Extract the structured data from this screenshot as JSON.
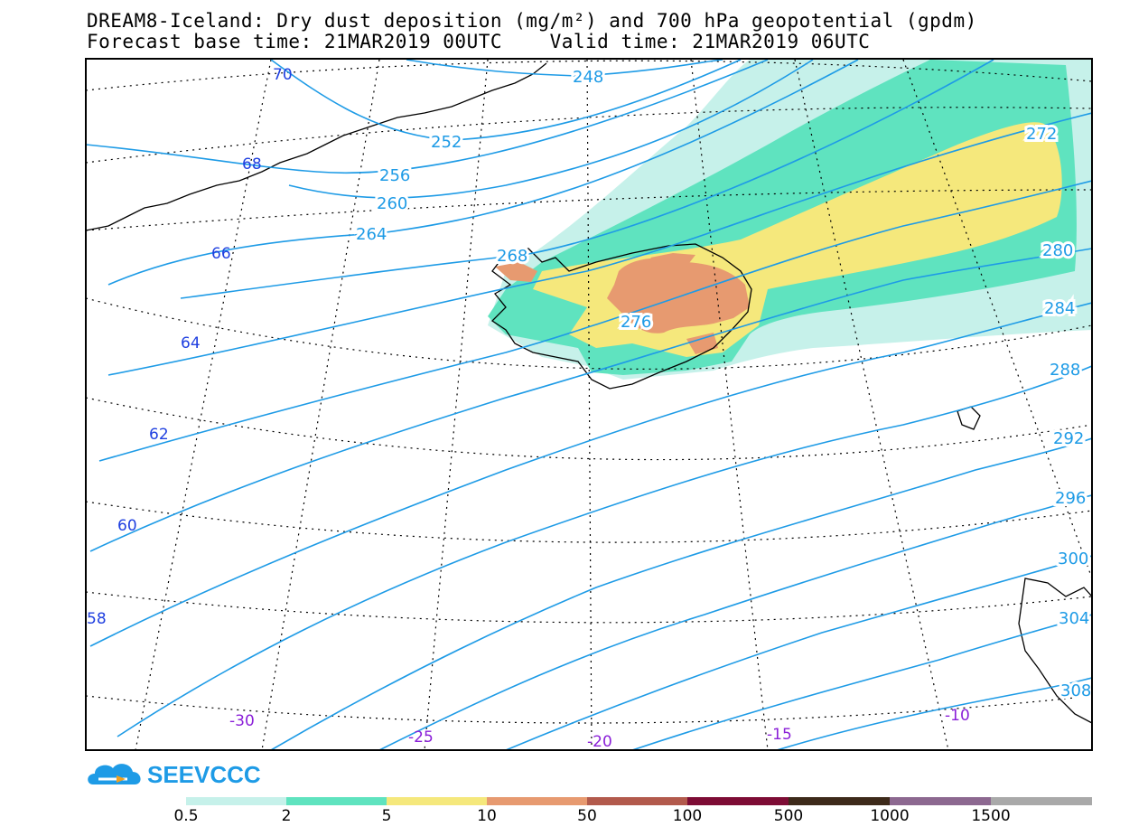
{
  "header": {
    "title_line1": "DREAM8-Iceland: Dry dust deposition (mg/m²) and 700 hPa geopotential (gpdm)",
    "title_line2": "Forecast base time: 21MAR2019 00UTC    Valid time: 21MAR2019 06UTC"
  },
  "map": {
    "geopotential_labels": [
      "248",
      "252",
      "256",
      "260",
      "264",
      "268",
      "272",
      "276",
      "280",
      "284",
      "288",
      "292",
      "296",
      "300",
      "304",
      "308"
    ],
    "latitude_labels": [
      "70",
      "68",
      "66",
      "64",
      "62",
      "60",
      "58"
    ],
    "longitude_labels": [
      "-30",
      "-25",
      "-20",
      "-15",
      "-10"
    ],
    "colors": {
      "contour": "#1e9be6",
      "contour_label": "#1e9be6",
      "lat_label": "#2040e0",
      "lon_label": "#8a1fd8",
      "coast": "#000000"
    }
  },
  "logo": {
    "text": "SEEVCCC"
  },
  "legend": {
    "colors": [
      "#c6f1ea",
      "#5fe3bf",
      "#f5e87c",
      "#e79a70",
      "#b25a4c",
      "#7d0c35",
      "#3d2a1a",
      "#8c6890",
      "#a9a9a9"
    ],
    "labels": [
      "0.5",
      "2",
      "5",
      "10",
      "50",
      "100",
      "500",
      "1000",
      "1500"
    ]
  }
}
